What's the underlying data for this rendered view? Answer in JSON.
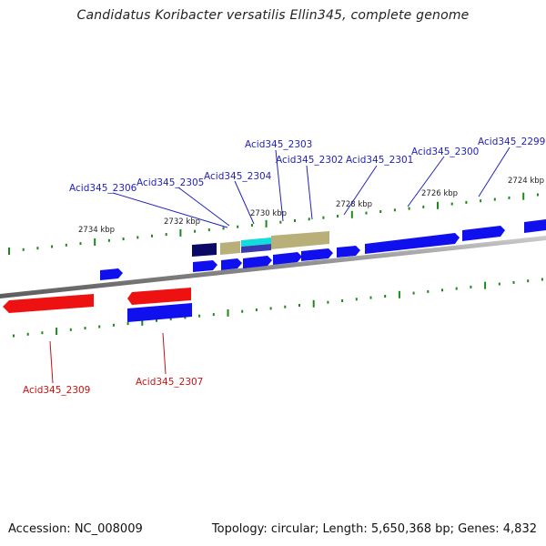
{
  "title": "Candidatus Koribacter versatilis Ellin345, complete genome",
  "accession": "Accession: NC_008009",
  "info": "Topology: circular; Length: 5,650,368 bp; Genes: 4,832",
  "colors": {
    "gene_forward": "#1010ee",
    "gene_reverse": "#ee1111",
    "gene_dark": "#0a0a66",
    "gene_khaki": "#b8b078",
    "gene_cyan": "#11dddd",
    "backbone": "#888888",
    "tick": "#1a8a1a"
  },
  "kbp_labels": [
    "2734 kbp",
    "2732 kbp",
    "2730 kbp",
    "2728 kbp",
    "2726 kbp",
    "2724 kbp"
  ],
  "gene_labels_top": [
    "Acid345_2306",
    "Acid345_2305",
    "Acid345_2304",
    "Acid345_2303",
    "Acid345_2302",
    "Acid345_2301",
    "Acid345_2300",
    "Acid345_2299"
  ],
  "gene_labels_bottom": [
    "Acid345_2309",
    "Acid345_2307"
  ]
}
